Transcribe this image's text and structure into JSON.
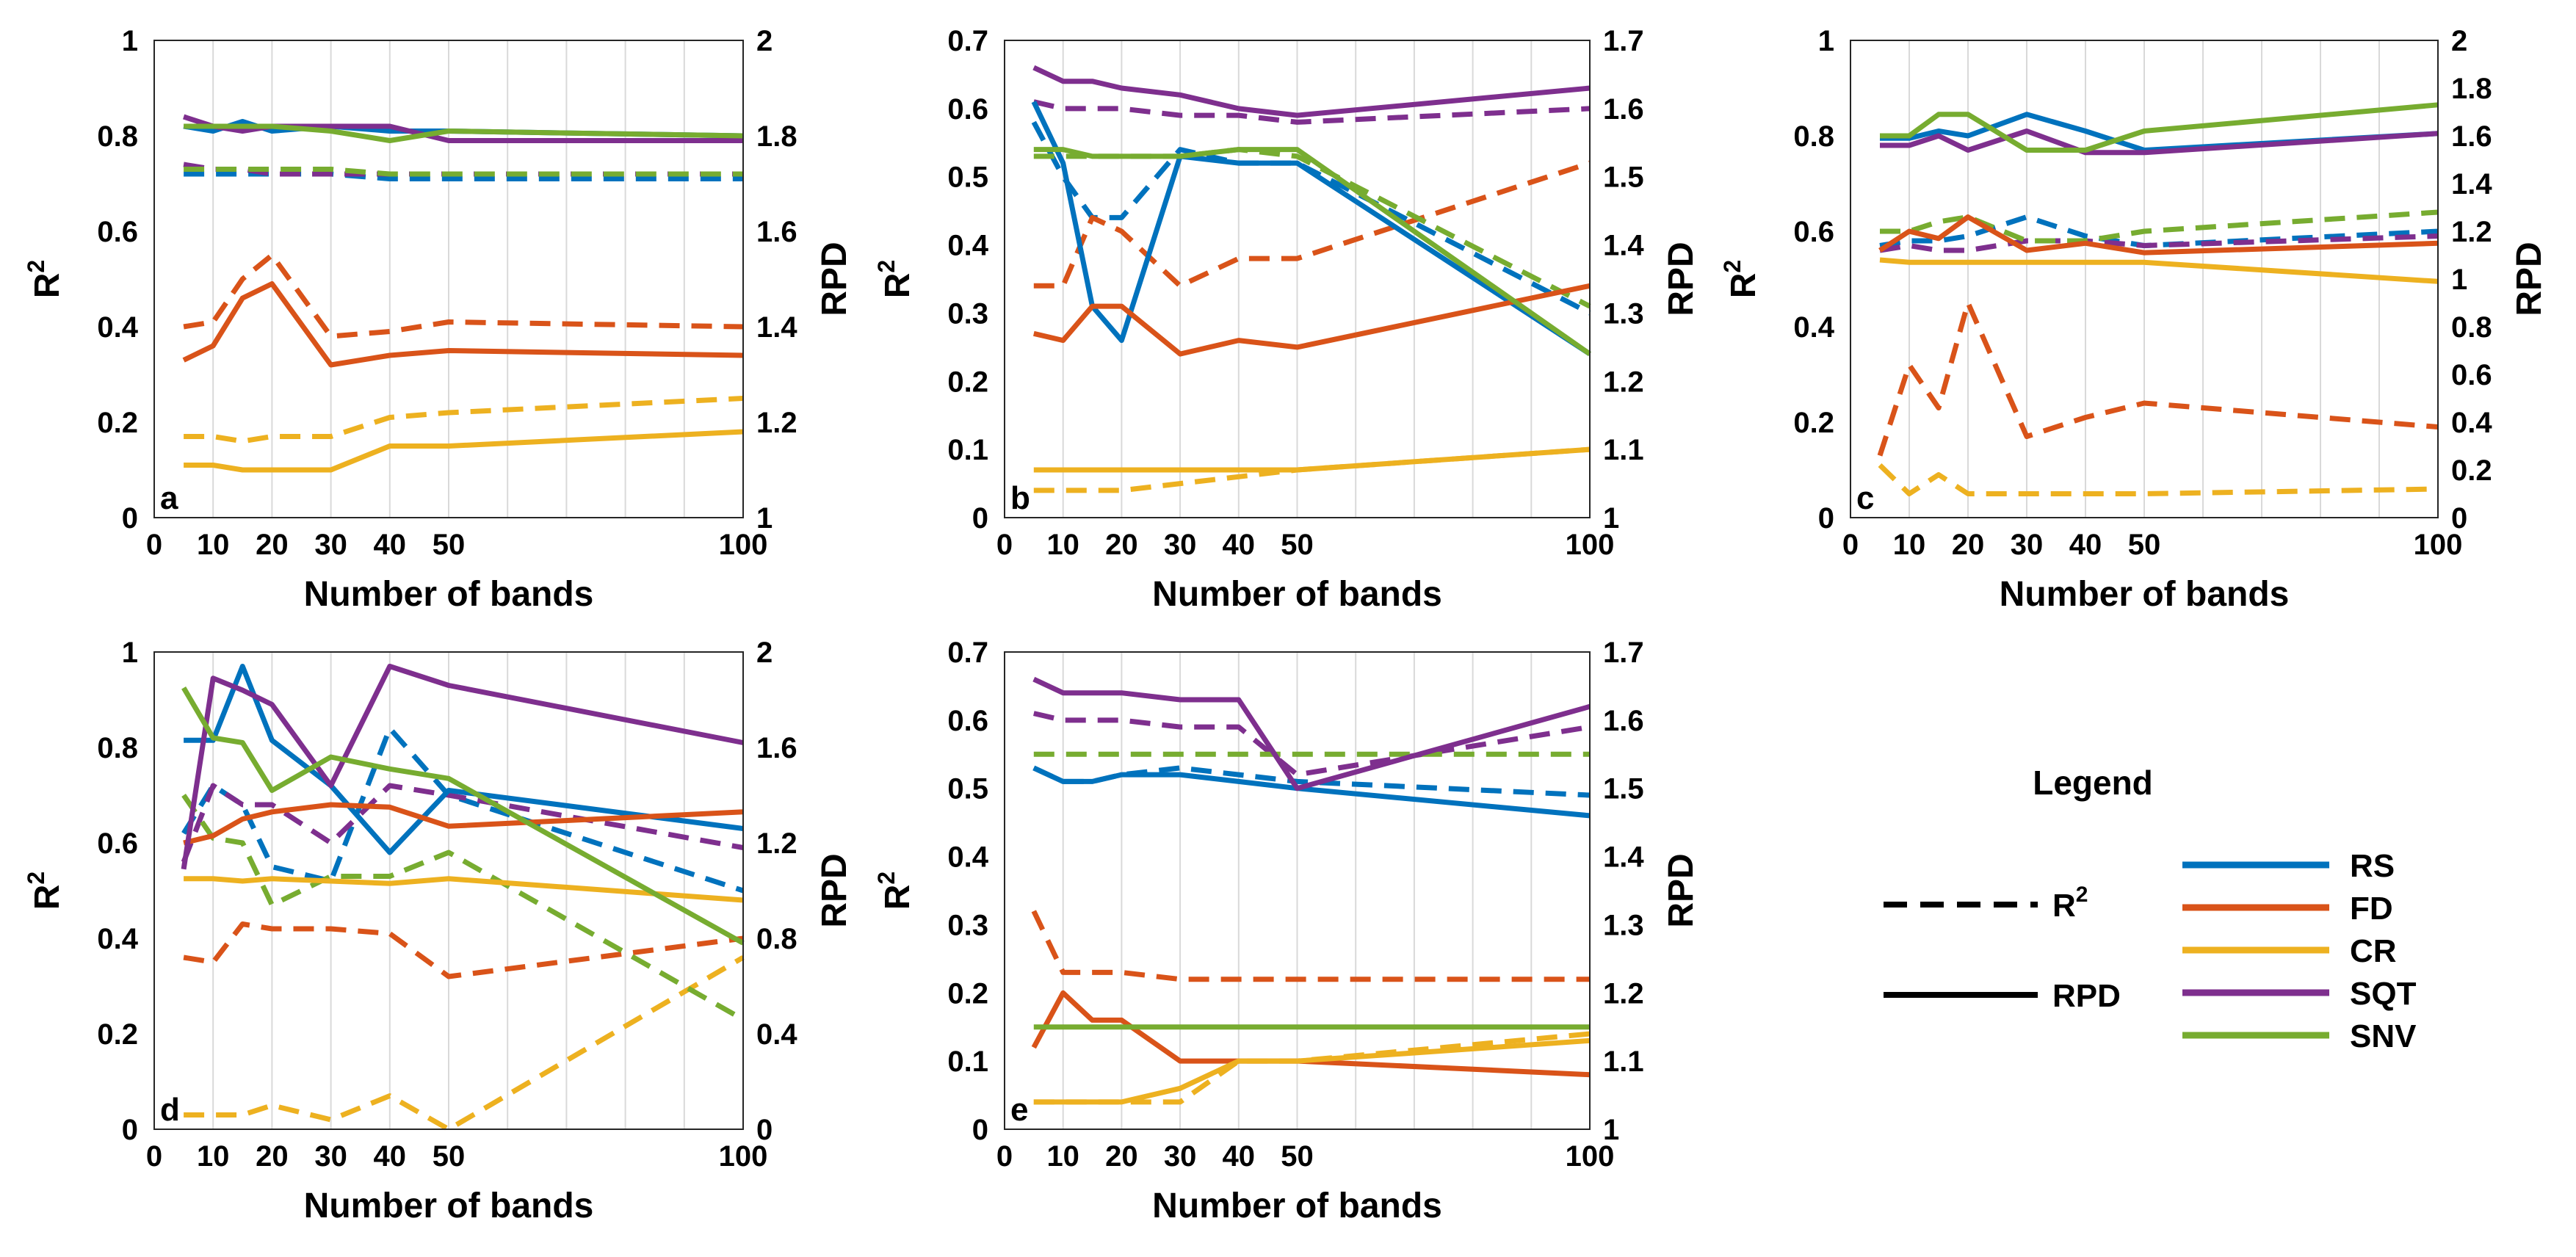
{
  "colors": {
    "RS": "#0072BD",
    "FD": "#D95319",
    "CR": "#EDB120",
    "SQT": "#7E2F8E",
    "SNV": "#77AC30"
  },
  "legend": {
    "title": "Legend",
    "line_styles": [
      {
        "style": "dashed",
        "label": "R",
        "sup": "2"
      },
      {
        "style": "solid",
        "label": "RPD"
      }
    ],
    "series": [
      "RS",
      "FD",
      "CR",
      "SQT",
      "SNV"
    ]
  },
  "chart_data": [
    {
      "id": "a",
      "type": "line",
      "letter": "a",
      "xlabel": "Number of bands",
      "ylabel_left": "R",
      "ylabel_left_sup": "2",
      "ylabel_right": "RPD",
      "xlim": [
        0,
        100
      ],
      "xticks": [
        0,
        10,
        20,
        30,
        40,
        50,
        100
      ],
      "ylim_left": [
        0,
        1
      ],
      "yticks_left": [
        "0",
        "0.2",
        "0.4",
        "0.6",
        "0.8",
        "1"
      ],
      "ylim_right": [
        1,
        2
      ],
      "yticks_right": [
        "1",
        "1.2",
        "1.4",
        "1.6",
        "1.8",
        "2"
      ],
      "x": [
        5,
        10,
        15,
        20,
        30,
        40,
        50,
        100
      ],
      "series": [
        {
          "name": "RS",
          "metric": "R2",
          "axis": "left",
          "values": [
            0.72,
            0.72,
            0.72,
            0.72,
            0.72,
            0.71,
            0.71,
            0.71
          ]
        },
        {
          "name": "FD",
          "metric": "R2",
          "axis": "left",
          "values": [
            0.4,
            0.41,
            0.5,
            0.55,
            0.38,
            0.39,
            0.41,
            0.4
          ]
        },
        {
          "name": "CR",
          "metric": "R2",
          "axis": "left",
          "values": [
            0.17,
            0.17,
            0.16,
            0.17,
            0.17,
            0.21,
            0.22,
            0.25
          ]
        },
        {
          "name": "SQT",
          "metric": "R2",
          "axis": "left",
          "values": [
            0.74,
            0.73,
            0.73,
            0.72,
            0.72,
            0.72,
            0.72,
            0.72
          ]
        },
        {
          "name": "SNV",
          "metric": "R2",
          "axis": "left",
          "values": [
            0.73,
            0.73,
            0.73,
            0.73,
            0.73,
            0.72,
            0.72,
            0.72
          ]
        },
        {
          "name": "RS",
          "metric": "RPD",
          "axis": "right",
          "values": [
            1.82,
            1.81,
            1.83,
            1.81,
            1.82,
            1.81,
            1.81,
            1.8
          ]
        },
        {
          "name": "FD",
          "metric": "RPD",
          "axis": "right",
          "values": [
            1.33,
            1.36,
            1.46,
            1.49,
            1.32,
            1.34,
            1.35,
            1.34
          ]
        },
        {
          "name": "CR",
          "metric": "RPD",
          "axis": "right",
          "values": [
            1.11,
            1.11,
            1.1,
            1.1,
            1.1,
            1.15,
            1.15,
            1.18
          ]
        },
        {
          "name": "SQT",
          "metric": "RPD",
          "axis": "right",
          "values": [
            1.84,
            1.82,
            1.81,
            1.82,
            1.82,
            1.82,
            1.79,
            1.79
          ]
        },
        {
          "name": "SNV",
          "metric": "RPD",
          "axis": "right",
          "values": [
            1.82,
            1.82,
            1.82,
            1.82,
            1.81,
            1.79,
            1.81,
            1.8
          ]
        }
      ]
    },
    {
      "id": "b",
      "type": "line",
      "letter": "b",
      "xlabel": "Number of bands",
      "ylabel_left": "R",
      "ylabel_left_sup": "2",
      "ylabel_right": "RPD",
      "xlim": [
        0,
        100
      ],
      "xticks": [
        0,
        10,
        20,
        30,
        40,
        50,
        100
      ],
      "ylim_left": [
        0,
        0.7
      ],
      "yticks_left": [
        "0",
        "0.1",
        "0.2",
        "0.3",
        "0.4",
        "0.5",
        "0.6",
        "0.7"
      ],
      "ylim_right": [
        1,
        1.7
      ],
      "yticks_right": [
        "1",
        "1.1",
        "1.2",
        "1.3",
        "1.4",
        "1.5",
        "1.6",
        "1.7"
      ],
      "x": [
        5,
        10,
        15,
        20,
        30,
        40,
        50,
        100
      ],
      "series": [
        {
          "name": "RS",
          "metric": "R2",
          "axis": "left",
          "values": [
            0.58,
            0.5,
            0.44,
            0.44,
            0.54,
            0.52,
            0.52,
            0.3
          ]
        },
        {
          "name": "FD",
          "metric": "R2",
          "axis": "left",
          "values": [
            0.34,
            0.34,
            0.44,
            0.42,
            0.34,
            0.38,
            0.38,
            0.52
          ]
        },
        {
          "name": "CR",
          "metric": "R2",
          "axis": "left",
          "values": [
            0.04,
            0.04,
            0.04,
            0.04,
            0.05,
            0.06,
            0.07,
            0.1
          ]
        },
        {
          "name": "SQT",
          "metric": "R2",
          "axis": "left",
          "values": [
            0.61,
            0.6,
            0.6,
            0.6,
            0.59,
            0.59,
            0.58,
            0.6
          ]
        },
        {
          "name": "SNV",
          "metric": "R2",
          "axis": "left",
          "values": [
            0.53,
            0.53,
            0.53,
            0.53,
            0.53,
            0.54,
            0.53,
            0.31
          ]
        },
        {
          "name": "RS",
          "metric": "RPD",
          "axis": "right",
          "values": [
            1.61,
            1.52,
            1.31,
            1.26,
            1.53,
            1.52,
            1.52,
            1.24
          ]
        },
        {
          "name": "FD",
          "metric": "RPD",
          "axis": "right",
          "values": [
            1.27,
            1.26,
            1.31,
            1.31,
            1.24,
            1.26,
            1.25,
            1.34
          ]
        },
        {
          "name": "CR",
          "metric": "RPD",
          "axis": "right",
          "values": [
            1.07,
            1.07,
            1.07,
            1.07,
            1.07,
            1.07,
            1.07,
            1.1
          ]
        },
        {
          "name": "SQT",
          "metric": "RPD",
          "axis": "right",
          "values": [
            1.66,
            1.64,
            1.64,
            1.63,
            1.62,
            1.6,
            1.59,
            1.63
          ]
        },
        {
          "name": "SNV",
          "metric": "RPD",
          "axis": "right",
          "values": [
            1.54,
            1.54,
            1.53,
            1.53,
            1.53,
            1.54,
            1.54,
            1.24
          ]
        }
      ]
    },
    {
      "id": "c",
      "type": "line",
      "letter": "c",
      "xlabel": "Number of bands",
      "ylabel_left": "R",
      "ylabel_left_sup": "2",
      "ylabel_right": "RPD",
      "xlim": [
        0,
        100
      ],
      "xticks": [
        0,
        10,
        20,
        30,
        40,
        50,
        100
      ],
      "ylim_left": [
        0,
        1
      ],
      "yticks_left": [
        "0",
        "0.2",
        "0.4",
        "0.6",
        "0.8",
        "1"
      ],
      "ylim_right": [
        0,
        2
      ],
      "yticks_right": [
        "0",
        "0.2",
        "0.4",
        "0.6",
        "0.8",
        "1",
        "1.2",
        "1.4",
        "1.6",
        "1.8",
        "2"
      ],
      "x": [
        5,
        10,
        15,
        20,
        30,
        40,
        50,
        100
      ],
      "series": [
        {
          "name": "RS",
          "metric": "R2",
          "axis": "left",
          "values": [
            0.57,
            0.58,
            0.58,
            0.59,
            0.63,
            0.59,
            0.57,
            0.6
          ]
        },
        {
          "name": "FD",
          "metric": "R2",
          "axis": "left",
          "values": [
            0.13,
            0.32,
            0.23,
            0.45,
            0.17,
            0.21,
            0.24,
            0.19
          ]
        },
        {
          "name": "CR",
          "metric": "R2",
          "axis": "left",
          "values": [
            0.11,
            0.05,
            0.09,
            0.05,
            0.05,
            0.05,
            0.05,
            0.06
          ]
        },
        {
          "name": "SQT",
          "metric": "R2",
          "axis": "left",
          "values": [
            0.56,
            0.57,
            0.56,
            0.56,
            0.58,
            0.58,
            0.57,
            0.59
          ]
        },
        {
          "name": "SNV",
          "metric": "R2",
          "axis": "left",
          "values": [
            0.6,
            0.6,
            0.62,
            0.63,
            0.58,
            0.58,
            0.6,
            0.64
          ]
        },
        {
          "name": "RS",
          "metric": "RPD",
          "axis": "right",
          "values": [
            1.59,
            1.59,
            1.62,
            1.6,
            1.69,
            1.62,
            1.54,
            1.61
          ]
        },
        {
          "name": "FD",
          "metric": "RPD",
          "axis": "right",
          "values": [
            1.12,
            1.2,
            1.17,
            1.26,
            1.12,
            1.15,
            1.11,
            1.15
          ]
        },
        {
          "name": "CR",
          "metric": "RPD",
          "axis": "right",
          "values": [
            1.08,
            1.07,
            1.07,
            1.07,
            1.07,
            1.07,
            1.07,
            0.99
          ]
        },
        {
          "name": "SQT",
          "metric": "RPD",
          "axis": "right",
          "values": [
            1.56,
            1.56,
            1.6,
            1.54,
            1.62,
            1.53,
            1.53,
            1.61
          ]
        },
        {
          "name": "SNV",
          "metric": "RPD",
          "axis": "right",
          "values": [
            1.6,
            1.6,
            1.69,
            1.69,
            1.54,
            1.54,
            1.62,
            1.73
          ]
        }
      ]
    },
    {
      "id": "d",
      "type": "line",
      "letter": "d",
      "xlabel": "Number of bands",
      "ylabel_left": "R",
      "ylabel_left_sup": "2",
      "ylabel_right": "RPD",
      "xlim": [
        0,
        100
      ],
      "xticks": [
        0,
        10,
        20,
        30,
        40,
        50,
        100
      ],
      "ylim_left": [
        0,
        1
      ],
      "yticks_left": [
        "0",
        "0.2",
        "0.4",
        "0.6",
        "0.8",
        "1"
      ],
      "ylim_right": [
        0,
        2
      ],
      "yticks_right": [
        "0",
        "0.4",
        "0.8",
        "1.2",
        "1.6",
        "2"
      ],
      "x": [
        5,
        10,
        15,
        20,
        30,
        40,
        50,
        100
      ],
      "series": [
        {
          "name": "RS",
          "metric": "R2",
          "axis": "left",
          "values": [
            0.62,
            0.72,
            0.68,
            0.55,
            0.52,
            0.84,
            0.7,
            0.5
          ]
        },
        {
          "name": "FD",
          "metric": "R2",
          "axis": "left",
          "values": [
            0.36,
            0.35,
            0.43,
            0.42,
            0.42,
            0.41,
            0.32,
            0.4
          ]
        },
        {
          "name": "CR",
          "metric": "R2",
          "axis": "left",
          "values": [
            0.03,
            0.03,
            0.03,
            0.05,
            0.02,
            0.07,
            0.0,
            0.36
          ]
        },
        {
          "name": "SQT",
          "metric": "R2",
          "axis": "left",
          "values": [
            0.56,
            0.72,
            0.68,
            0.68,
            0.6,
            0.72,
            0.7,
            0.59
          ]
        },
        {
          "name": "SNV",
          "metric": "R2",
          "axis": "left",
          "values": [
            0.7,
            0.61,
            0.6,
            0.47,
            0.53,
            0.53,
            0.58,
            0.23
          ]
        },
        {
          "name": "RS",
          "metric": "RPD",
          "axis": "right",
          "values": [
            1.63,
            1.63,
            1.94,
            1.63,
            1.44,
            1.16,
            1.42,
            1.26
          ]
        },
        {
          "name": "FD",
          "metric": "RPD",
          "axis": "right",
          "values": [
            1.2,
            1.23,
            1.3,
            1.33,
            1.36,
            1.35,
            1.27,
            1.33
          ]
        },
        {
          "name": "CR",
          "metric": "RPD",
          "axis": "right",
          "values": [
            1.05,
            1.05,
            1.04,
            1.05,
            1.04,
            1.03,
            1.05,
            0.96
          ]
        },
        {
          "name": "SQT",
          "metric": "RPD",
          "axis": "right",
          "values": [
            1.09,
            1.89,
            1.84,
            1.78,
            1.44,
            1.94,
            1.86,
            1.62
          ]
        },
        {
          "name": "SNV",
          "metric": "RPD",
          "axis": "right",
          "values": [
            1.85,
            1.64,
            1.62,
            1.42,
            1.56,
            1.51,
            1.47,
            0.78
          ]
        }
      ]
    },
    {
      "id": "e",
      "type": "line",
      "letter": "e",
      "xlabel": "Number of bands",
      "ylabel_left": "R",
      "ylabel_left_sup": "2",
      "ylabel_right": "RPD",
      "xlim": [
        0,
        100
      ],
      "xticks": [
        0,
        10,
        20,
        30,
        40,
        50,
        100
      ],
      "ylim_left": [
        0,
        0.7
      ],
      "yticks_left": [
        "0",
        "0.1",
        "0.2",
        "0.3",
        "0.4",
        "0.5",
        "0.6",
        "0.7"
      ],
      "ylim_right": [
        1,
        1.7
      ],
      "yticks_right": [
        "1",
        "1.1",
        "1.2",
        "1.3",
        "1.4",
        "1.5",
        "1.6",
        "1.7"
      ],
      "x": [
        5,
        10,
        15,
        20,
        30,
        40,
        50,
        100
      ],
      "series": [
        {
          "name": "RS",
          "metric": "R2",
          "axis": "left",
          "values": [
            0.53,
            0.51,
            0.51,
            0.52,
            0.53,
            0.52,
            0.51,
            0.49
          ]
        },
        {
          "name": "FD",
          "metric": "R2",
          "axis": "left",
          "values": [
            0.32,
            0.23,
            0.23,
            0.23,
            0.22,
            0.22,
            0.22,
            0.22
          ]
        },
        {
          "name": "CR",
          "metric": "R2",
          "axis": "left",
          "values": [
            0.04,
            0.04,
            0.04,
            0.04,
            0.04,
            0.1,
            0.1,
            0.14
          ]
        },
        {
          "name": "SQT",
          "metric": "R2",
          "axis": "left",
          "values": [
            0.61,
            0.6,
            0.6,
            0.6,
            0.59,
            0.59,
            0.52,
            0.59
          ]
        },
        {
          "name": "SNV",
          "metric": "R2",
          "axis": "left",
          "values": [
            0.55,
            0.55,
            0.55,
            0.55,
            0.55,
            0.55,
            0.55,
            0.55
          ]
        },
        {
          "name": "RS",
          "metric": "RPD",
          "axis": "right",
          "values": [
            1.53,
            1.51,
            1.51,
            1.52,
            1.52,
            1.51,
            1.5,
            1.46
          ]
        },
        {
          "name": "FD",
          "metric": "RPD",
          "axis": "right",
          "values": [
            1.12,
            1.2,
            1.16,
            1.16,
            1.1,
            1.1,
            1.1,
            1.08
          ]
        },
        {
          "name": "CR",
          "metric": "RPD",
          "axis": "right",
          "values": [
            1.04,
            1.04,
            1.04,
            1.04,
            1.06,
            1.1,
            1.1,
            1.13
          ]
        },
        {
          "name": "SQT",
          "metric": "RPD",
          "axis": "right",
          "values": [
            1.66,
            1.64,
            1.64,
            1.64,
            1.63,
            1.63,
            1.5,
            1.62
          ]
        },
        {
          "name": "SNV",
          "metric": "RPD",
          "axis": "right",
          "values": [
            1.15,
            1.15,
            1.15,
            1.15,
            1.15,
            1.15,
            1.15,
            1.15
          ]
        }
      ]
    }
  ]
}
